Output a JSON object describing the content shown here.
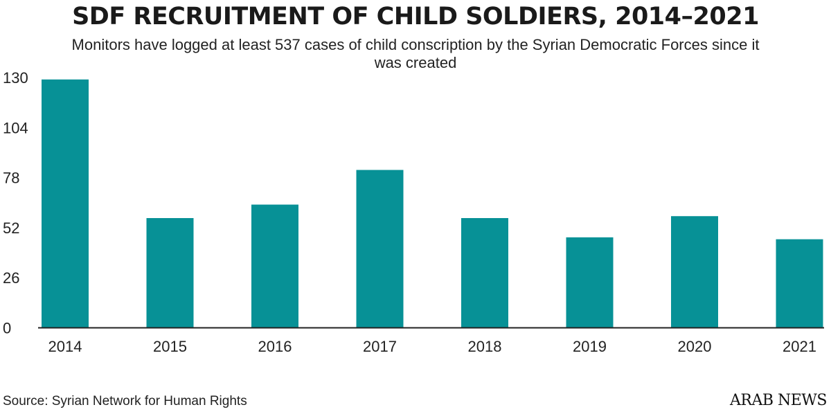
{
  "chart_data": {
    "type": "bar",
    "title": "SDF RECRUITMENT OF CHILD SOLDIERS, 2014–2021",
    "subtitle": "Monitors have logged at least 537 cases of child conscription by the Syrian Democratic Forces since it was created",
    "categories": [
      "2014",
      "2015",
      "2016",
      "2017",
      "2018",
      "2019",
      "2020",
      "2021"
    ],
    "values": [
      129,
      57,
      64,
      82,
      57,
      47,
      58,
      46
    ],
    "yticks": [
      0,
      26,
      52,
      78,
      104,
      130
    ],
    "ylim": [
      0,
      130
    ],
    "xlabel": "",
    "ylabel": "",
    "grid": false,
    "bar_color": "#079196"
  },
  "footer": {
    "source": "Source: Syrian Network for Human Rights",
    "logo": "ARAB NEWS"
  }
}
